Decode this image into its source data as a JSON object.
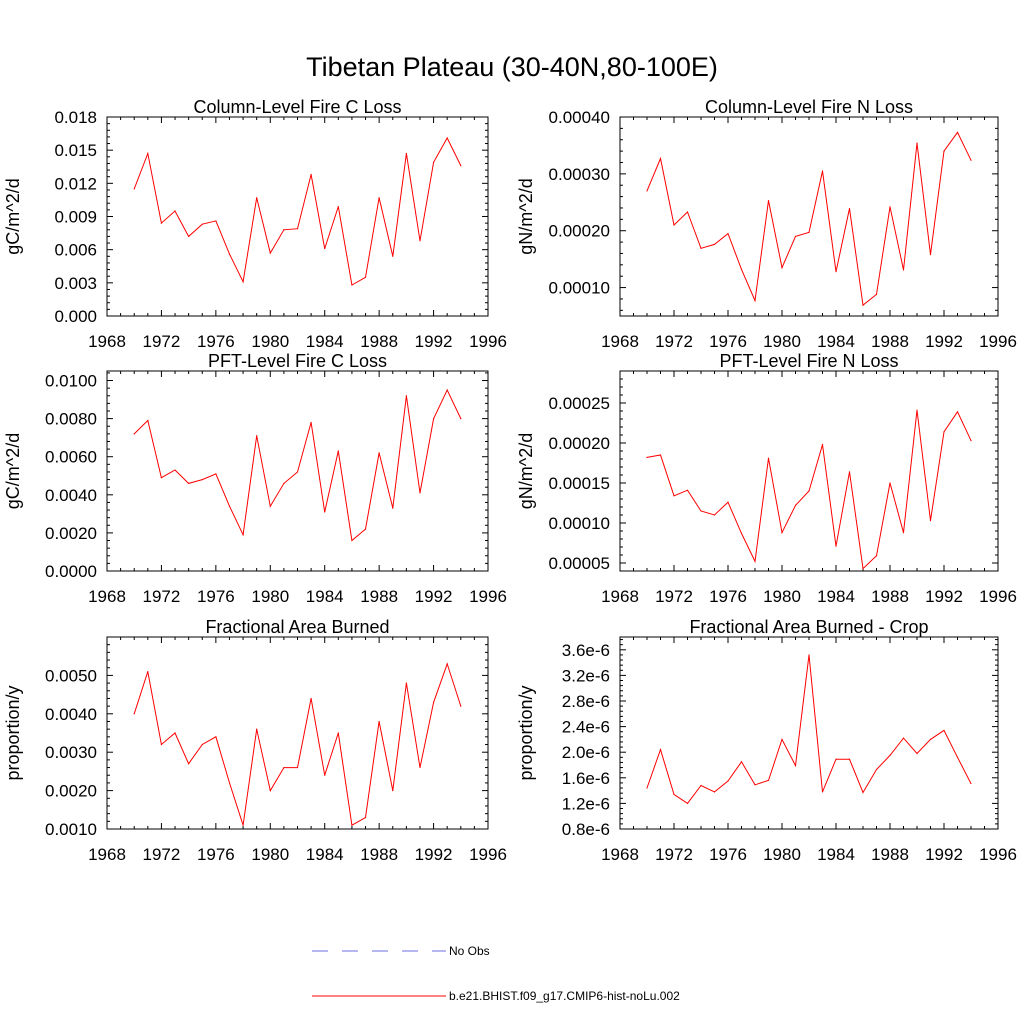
{
  "figure": {
    "title": "Tibetan Plateau (30-40N,80-100E)",
    "line_color": "#ff0000",
    "obs_color": "#6e6ee0",
    "legend": {
      "obs_label": "No Obs",
      "model_label": "b.e21.BHIST.f09_g17.CMIP6-hist-noLu.002",
      "placement": "bottom-center"
    }
  },
  "chart_data": [
    {
      "type": "line",
      "title": "Column-Level Fire C Loss",
      "ylabel": "gC/m^2/d",
      "xlim": [
        1968,
        1996
      ],
      "ylim": [
        0.0,
        0.018
      ],
      "xticks": [
        1968,
        1972,
        1976,
        1980,
        1984,
        1988,
        1992,
        1996
      ],
      "xtick_labels": [
        "1968",
        "1972",
        "1976",
        "1980",
        "1984",
        "1988",
        "1992",
        "1996"
      ],
      "yticks": [
        0.0,
        0.003,
        0.006,
        0.009,
        0.012,
        0.015,
        0.018
      ],
      "ytick_labels": [
        "0.000",
        "0.003",
        "0.006",
        "0.009",
        "0.012",
        "0.015",
        "0.018"
      ],
      "series": [
        {
          "x": [
            1970,
            1971,
            1972,
            1973,
            1974,
            1975,
            1976,
            1977,
            1978,
            1979,
            1980,
            1981,
            1982,
            1983,
            1984,
            1985,
            1986,
            1987,
            1988,
            1989,
            1990,
            1991,
            1992,
            1993,
            1994
          ],
          "y": [
            0.0115,
            0.0147,
            0.0084,
            0.0095,
            0.0072,
            0.0083,
            0.0086,
            0.0056,
            0.0031,
            0.0107,
            0.0057,
            0.0078,
            0.0079,
            0.0128,
            0.0061,
            0.0099,
            0.0028,
            0.0035,
            0.0107,
            0.0054,
            0.0147,
            0.0068,
            0.0139,
            0.0161,
            0.0136
          ]
        }
      ]
    },
    {
      "type": "line",
      "title": "Column-Level Fire N Loss",
      "ylabel": "gN/m^2/d",
      "xlim": [
        1968,
        1996
      ],
      "ylim": [
        5e-05,
        0.0004
      ],
      "xticks": [
        1968,
        1972,
        1976,
        1980,
        1984,
        1988,
        1992,
        1996
      ],
      "xtick_labels": [
        "1968",
        "1972",
        "1976",
        "1980",
        "1984",
        "1988",
        "1992",
        "1996"
      ],
      "yticks": [
        0.0001,
        0.0002,
        0.0003,
        0.0004
      ],
      "ytick_labels": [
        "0.00010",
        "0.00020",
        "0.00030",
        "0.00040"
      ],
      "series": [
        {
          "x": [
            1970,
            1971,
            1972,
            1973,
            1974,
            1975,
            1976,
            1977,
            1978,
            1979,
            1980,
            1981,
            1982,
            1983,
            1984,
            1985,
            1986,
            1987,
            1988,
            1989,
            1990,
            1991,
            1992,
            1993,
            1994
          ],
          "y": [
            0.00027,
            0.000327,
            0.00021,
            0.000233,
            0.000169,
            0.000176,
            0.000195,
            0.000132,
            7.7e-05,
            0.000253,
            0.000135,
            0.00019,
            0.000197,
            0.000305,
            0.000128,
            0.000239,
            6.9e-05,
            8.8e-05,
            0.000242,
            0.000131,
            0.000354,
            0.000158,
            0.00034,
            0.000373,
            0.000324
          ]
        }
      ]
    },
    {
      "type": "line",
      "title": "PFT-Level Fire C Loss",
      "ylabel": "gC/m^2/d",
      "xlim": [
        1968,
        1996
      ],
      "ylim": [
        0.0,
        0.0105
      ],
      "xticks": [
        1968,
        1972,
        1976,
        1980,
        1984,
        1988,
        1992,
        1996
      ],
      "xtick_labels": [
        "1968",
        "1972",
        "1976",
        "1980",
        "1984",
        "1988",
        "1992",
        "1996"
      ],
      "yticks": [
        0.0,
        0.002,
        0.004,
        0.006,
        0.008,
        0.01
      ],
      "ytick_labels": [
        "0.0000",
        "0.0020",
        "0.0040",
        "0.0060",
        "0.0080",
        "0.0100"
      ],
      "series": [
        {
          "x": [
            1970,
            1971,
            1972,
            1973,
            1974,
            1975,
            1976,
            1977,
            1978,
            1979,
            1980,
            1981,
            1982,
            1983,
            1984,
            1985,
            1986,
            1987,
            1988,
            1989,
            1990,
            1991,
            1992,
            1993,
            1994
          ],
          "y": [
            0.0072,
            0.0079,
            0.0049,
            0.0053,
            0.0046,
            0.0048,
            0.0051,
            0.0034,
            0.0019,
            0.0071,
            0.0034,
            0.0046,
            0.0052,
            0.0078,
            0.0031,
            0.0063,
            0.0016,
            0.0022,
            0.0062,
            0.0033,
            0.0092,
            0.0041,
            0.008,
            0.0095,
            0.008
          ]
        }
      ]
    },
    {
      "type": "line",
      "title": "PFT-Level Fire N Loss",
      "ylabel": "gN/m^2/d",
      "xlim": [
        1968,
        1996
      ],
      "ylim": [
        4e-05,
        0.00029
      ],
      "xticks": [
        1968,
        1972,
        1976,
        1980,
        1984,
        1988,
        1992,
        1996
      ],
      "xtick_labels": [
        "1968",
        "1972",
        "1976",
        "1980",
        "1984",
        "1988",
        "1992",
        "1996"
      ],
      "yticks": [
        5e-05,
        0.0001,
        0.00015,
        0.0002,
        0.00025
      ],
      "ytick_labels": [
        "0.00005",
        "0.00010",
        "0.00015",
        "0.00020",
        "0.00025"
      ],
      "series": [
        {
          "x": [
            1970,
            1971,
            1972,
            1973,
            1974,
            1975,
            1976,
            1977,
            1978,
            1979,
            1980,
            1981,
            1982,
            1983,
            1984,
            1985,
            1986,
            1987,
            1988,
            1989,
            1990,
            1991,
            1992,
            1993,
            1994
          ],
          "y": [
            0.000182,
            0.000185,
            0.000134,
            0.000141,
            0.000115,
            0.00011,
            0.000126,
            8.7e-05,
            5.2e-05,
            0.000181,
            8.8e-05,
            0.000122,
            0.00014,
            0.000198,
            7.1e-05,
            0.000164,
            4.3e-05,
            5.9e-05,
            0.00015,
            8.8e-05,
            0.000241,
            0.000103,
            0.000214,
            0.000239,
            0.000203
          ]
        }
      ]
    },
    {
      "type": "line",
      "title": "Fractional Area Burned",
      "ylabel": "proportion/y",
      "xlim": [
        1968,
        1996
      ],
      "ylim": [
        0.001,
        0.006
      ],
      "xticks": [
        1968,
        1972,
        1976,
        1980,
        1984,
        1988,
        1992,
        1996
      ],
      "xtick_labels": [
        "1968",
        "1972",
        "1976",
        "1980",
        "1984",
        "1988",
        "1992",
        "1996"
      ],
      "yticks": [
        0.001,
        0.002,
        0.003,
        0.004,
        0.005
      ],
      "ytick_labels": [
        "0.0010",
        "0.0020",
        "0.0030",
        "0.0040",
        "0.0050"
      ],
      "series": [
        {
          "x": [
            1970,
            1971,
            1972,
            1973,
            1974,
            1975,
            1976,
            1977,
            1978,
            1979,
            1980,
            1981,
            1982,
            1983,
            1984,
            1985,
            1986,
            1987,
            1988,
            1989,
            1990,
            1991,
            1992,
            1993,
            1994
          ],
          "y": [
            0.004,
            0.0051,
            0.0032,
            0.0035,
            0.0027,
            0.0032,
            0.0034,
            0.0022,
            0.0011,
            0.0036,
            0.002,
            0.0026,
            0.0026,
            0.0044,
            0.0024,
            0.0035,
            0.0011,
            0.0013,
            0.0038,
            0.002,
            0.0048,
            0.0026,
            0.0043,
            0.0053,
            0.0042
          ]
        }
      ]
    },
    {
      "type": "line",
      "title": "Fractional Area Burned - Crop",
      "ylabel": "proportion/y",
      "xlim": [
        1968,
        1996
      ],
      "ylim": [
        8e-07,
        3.8e-06
      ],
      "xticks": [
        1968,
        1972,
        1976,
        1980,
        1984,
        1988,
        1992,
        1996
      ],
      "xtick_labels": [
        "1968",
        "1972",
        "1976",
        "1980",
        "1984",
        "1988",
        "1992",
        "1996"
      ],
      "yticks": [
        8e-07,
        1.2e-06,
        1.6e-06,
        2e-06,
        2.4e-06,
        2.8e-06,
        3.2e-06,
        3.6e-06
      ],
      "ytick_labels": [
        "0.8e-6",
        "1.2e-6",
        "1.6e-6",
        "2.0e-6",
        "2.4e-6",
        "2.8e-6",
        "3.2e-6",
        "3.6e-6"
      ],
      "series": [
        {
          "x": [
            1970,
            1971,
            1972,
            1973,
            1974,
            1975,
            1976,
            1977,
            1978,
            1979,
            1980,
            1981,
            1982,
            1983,
            1984,
            1985,
            1986,
            1987,
            1988,
            1989,
            1990,
            1991,
            1992,
            1993,
            1994
          ],
          "y": [
            1.44e-06,
            2.04e-06,
            1.34e-06,
            1.2e-06,
            1.48e-06,
            1.38e-06,
            1.55e-06,
            1.85e-06,
            1.49e-06,
            1.56e-06,
            2.2e-06,
            1.79e-06,
            3.52e-06,
            1.38e-06,
            1.89e-06,
            1.89e-06,
            1.37e-06,
            1.73e-06,
            1.95e-06,
            2.22e-06,
            1.98e-06,
            2.2e-06,
            2.34e-06,
            1.92e-06,
            1.51e-06
          ]
        }
      ]
    }
  ]
}
